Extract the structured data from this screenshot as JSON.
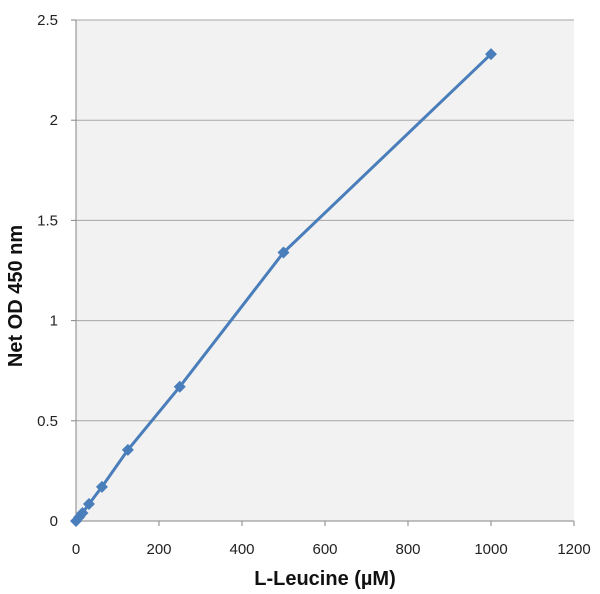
{
  "chart_data": {
    "type": "line",
    "xlabel": "L-Leucine (µM)",
    "ylabel": "Net OD 450 nm",
    "xlim": [
      0,
      1200
    ],
    "ylim": [
      0,
      2.5
    ],
    "x_ticks": [
      "0",
      "200",
      "400",
      "600",
      "800",
      "1000",
      "1200"
    ],
    "y_ticks": [
      "0",
      "0.5",
      "1",
      "1.5",
      "2",
      "2.5"
    ],
    "grid": "horizontal",
    "legend": "none",
    "series": [
      {
        "color": "#4a7ebb",
        "marker": "diamond",
        "x": [
          0,
          7.8,
          15.6,
          31.25,
          62.5,
          125,
          250,
          500,
          1000
        ],
        "y": [
          0.0,
          0.02,
          0.04,
          0.085,
          0.17,
          0.355,
          0.67,
          1.34,
          2.33
        ]
      }
    ]
  }
}
